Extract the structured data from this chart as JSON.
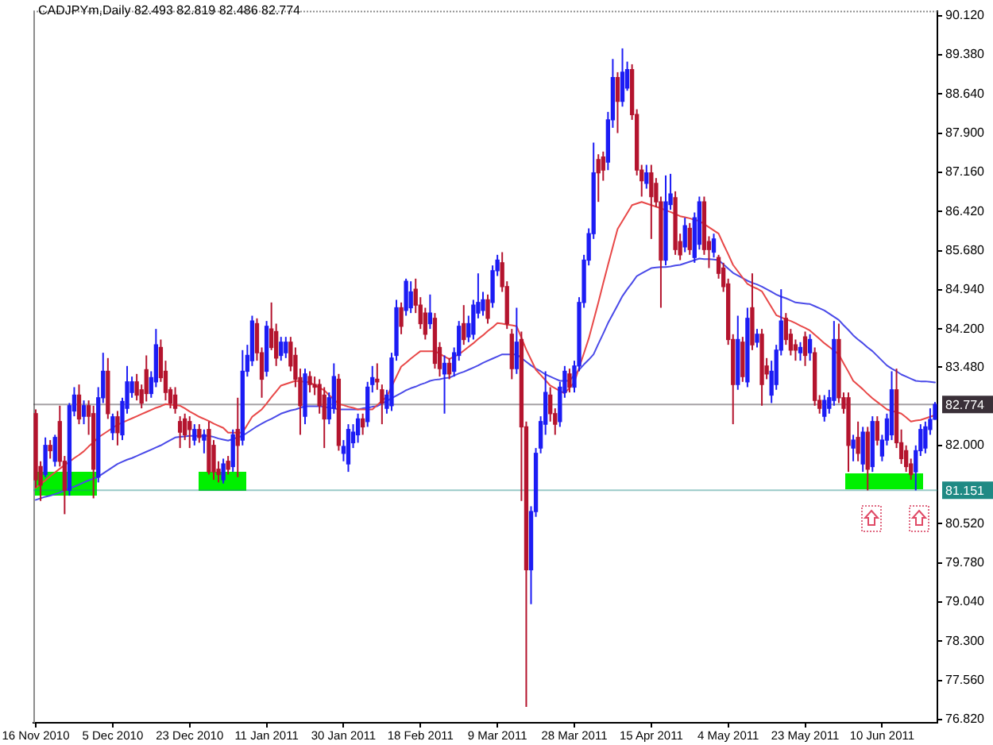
{
  "chart_data": {
    "type": "candlestick",
    "title": "CADJPYm,Daily 82.493 82.819 82.486 82.774",
    "categories": [
      "16 Nov 2010",
      null,
      null,
      null,
      null,
      null,
      null,
      null,
      null,
      null,
      null,
      null,
      null,
      null,
      null,
      null,
      "5 Dec 2010",
      null,
      null,
      null,
      null,
      null,
      null,
      null,
      null,
      null,
      null,
      null,
      null,
      null,
      null,
      null,
      "23 Dec 2010",
      null,
      null,
      null,
      null,
      null,
      null,
      null,
      null,
      null,
      null,
      null,
      null,
      null,
      null,
      null,
      "11 Jan 2011",
      null,
      null,
      null,
      null,
      null,
      null,
      null,
      null,
      null,
      null,
      null,
      null,
      null,
      null,
      null,
      "30 Jan 2011",
      null,
      null,
      null,
      null,
      null,
      null,
      null,
      null,
      null,
      null,
      null,
      null,
      null,
      null,
      null,
      "18 Feb 2011",
      null,
      null,
      null,
      null,
      null,
      null,
      null,
      null,
      null,
      null,
      null,
      null,
      null,
      null,
      null,
      "9 Mar 2011",
      null,
      null,
      null,
      null,
      null,
      null,
      null,
      null,
      null,
      null,
      null,
      null,
      null,
      null,
      null,
      "28 Mar 2011",
      null,
      null,
      null,
      null,
      null,
      null,
      null,
      null,
      null,
      null,
      null,
      null,
      null,
      null,
      null,
      "15 Apr 2011",
      null,
      null,
      null,
      null,
      null,
      null,
      null,
      null,
      null,
      null,
      null,
      null,
      null,
      null,
      null,
      "4 May 2011",
      null,
      null,
      null,
      null,
      null,
      null,
      null,
      null,
      null,
      null,
      null,
      null,
      null,
      null,
      null,
      "23 May 2011",
      null,
      null,
      null,
      null,
      null,
      null,
      null,
      null,
      null,
      null,
      null,
      null,
      null,
      null,
      null,
      "10 Jun 2011",
      null,
      null,
      null,
      null,
      null,
      null,
      null,
      null,
      null,
      null,
      null
    ],
    "ohlc": [
      [
        82.6,
        82.68,
        81.2,
        81.35
      ],
      [
        81.6,
        81.7,
        80.95,
        81.25
      ],
      [
        81.45,
        82.15,
        81.4,
        82.0
      ],
      [
        82.0,
        82.1,
        81.75,
        81.9
      ],
      [
        81.7,
        82.2,
        81.6,
        82.15
      ],
      [
        82.45,
        82.75,
        81.6,
        81.7
      ],
      [
        81.7,
        81.8,
        80.7,
        81.15
      ],
      [
        81.15,
        82.8,
        81.05,
        82.75
      ],
      [
        82.65,
        83.1,
        82.55,
        82.95
      ],
      [
        82.95,
        83.15,
        82.4,
        82.5
      ],
      [
        82.55,
        82.85,
        82.4,
        82.75
      ],
      [
        82.75,
        82.85,
        82.2,
        82.55
      ],
      [
        82.6,
        82.75,
        81.0,
        81.55
      ],
      [
        81.4,
        83.1,
        81.3,
        82.9
      ],
      [
        82.9,
        83.75,
        82.8,
        83.4
      ],
      [
        83.4,
        83.65,
        82.5,
        82.6
      ],
      [
        82.24,
        82.6,
        82.1,
        82.54
      ],
      [
        82.54,
        82.65,
        82.0,
        82.24
      ],
      [
        82.2,
        82.9,
        82.1,
        82.83
      ],
      [
        82.7,
        83.5,
        82.6,
        83.2
      ],
      [
        83.0,
        83.3,
        82.9,
        83.2
      ],
      [
        83.2,
        83.35,
        82.85,
        82.95
      ],
      [
        83.05,
        83.15,
        82.7,
        82.8
      ],
      [
        83.43,
        83.7,
        82.83,
        82.98
      ],
      [
        82.98,
        83.4,
        82.9,
        83.28
      ],
      [
        83.2,
        84.2,
        83.1,
        83.9
      ],
      [
        83.85,
        84.0,
        83.2,
        83.28
      ],
      [
        83.4,
        83.6,
        82.85,
        83.0
      ],
      [
        83.05,
        83.1,
        82.7,
        82.8
      ],
      [
        82.95,
        83.1,
        82.6,
        82.7
      ],
      [
        82.45,
        82.55,
        81.95,
        82.25
      ],
      [
        82.5,
        82.6,
        82.1,
        82.2
      ],
      [
        82.45,
        82.55,
        81.95,
        82.3
      ],
      [
        82.1,
        82.4,
        82.0,
        82.3
      ],
      [
        82.3,
        82.4,
        82.05,
        82.15
      ],
      [
        82.1,
        82.3,
        81.85,
        82.2
      ],
      [
        82.3,
        82.45,
        81.45,
        81.5
      ],
      [
        82.0,
        82.1,
        81.35,
        81.5
      ],
      [
        81.55,
        81.7,
        81.3,
        81.45
      ],
      [
        81.35,
        81.75,
        81.28,
        81.65
      ],
      [
        81.7,
        81.8,
        81.45,
        81.55
      ],
      [
        81.6,
        82.3,
        81.5,
        82.2
      ],
      [
        82.3,
        82.9,
        81.4,
        82.0
      ],
      [
        82.1,
        83.8,
        82.0,
        83.4
      ],
      [
        83.4,
        83.9,
        83.3,
        83.7
      ],
      [
        83.6,
        84.45,
        83.5,
        84.35
      ],
      [
        84.3,
        84.4,
        83.6,
        83.75
      ],
      [
        83.75,
        83.85,
        82.9,
        83.25
      ],
      [
        83.4,
        84.35,
        83.3,
        84.25
      ],
      [
        84.2,
        84.7,
        83.8,
        83.85
      ],
      [
        84.15,
        84.3,
        83.5,
        83.65
      ],
      [
        83.7,
        84.05,
        83.6,
        83.95
      ],
      [
        83.75,
        84.05,
        83.65,
        83.95
      ],
      [
        83.95,
        84.05,
        83.4,
        83.5
      ],
      [
        83.7,
        83.85,
        83.1,
        83.25
      ],
      [
        83.28,
        83.45,
        82.2,
        82.75
      ],
      [
        82.55,
        83.45,
        82.4,
        83.35
      ],
      [
        83.3,
        83.4,
        83.0,
        83.15
      ],
      [
        83.15,
        83.3,
        82.95,
        83.1
      ],
      [
        83.15,
        83.25,
        82.6,
        82.75
      ],
      [
        82.95,
        83.1,
        81.95,
        82.5
      ],
      [
        82.5,
        83.0,
        82.4,
        82.9
      ],
      [
        82.7,
        83.55,
        82.6,
        83.3
      ],
      [
        83.25,
        83.35,
        81.9,
        82.0
      ],
      [
        81.85,
        82.1,
        81.7,
        81.98
      ],
      [
        81.65,
        82.4,
        81.5,
        82.3
      ],
      [
        82.05,
        82.4,
        81.95,
        82.25
      ],
      [
        82.2,
        82.6,
        82.05,
        82.5
      ],
      [
        82.5,
        82.6,
        82.2,
        82.35
      ],
      [
        82.45,
        83.2,
        82.35,
        83.1
      ],
      [
        83.15,
        83.5,
        83.0,
        83.28
      ],
      [
        83.25,
        83.55,
        83.05,
        83.2
      ],
      [
        83.05,
        83.15,
        82.4,
        82.8
      ],
      [
        82.7,
        83.05,
        82.6,
        82.95
      ],
      [
        82.75,
        83.75,
        82.65,
        83.65
      ],
      [
        83.7,
        84.75,
        83.6,
        84.6
      ],
      [
        84.6,
        84.7,
        84.1,
        84.25
      ],
      [
        84.55,
        85.15,
        84.45,
        85.1
      ],
      [
        84.6,
        85.1,
        84.5,
        84.9
      ],
      [
        84.95,
        85.15,
        84.5,
        84.65
      ],
      [
        84.65,
        84.8,
        84.2,
        84.3
      ],
      [
        84.5,
        84.6,
        84.0,
        84.1
      ],
      [
        84.3,
        84.85,
        84.2,
        84.5
      ],
      [
        84.4,
        84.5,
        83.45,
        83.55
      ],
      [
        83.85,
        83.95,
        83.3,
        83.45
      ],
      [
        83.35,
        83.7,
        82.6,
        83.55
      ],
      [
        83.55,
        83.65,
        83.25,
        83.35
      ],
      [
        83.4,
        83.85,
        83.3,
        83.75
      ],
      [
        83.7,
        84.35,
        83.6,
        84.25
      ],
      [
        84.3,
        84.65,
        83.9,
        84.0
      ],
      [
        84.05,
        84.45,
        83.95,
        84.3
      ],
      [
        84.1,
        84.75,
        84.0,
        84.65
      ],
      [
        84.5,
        85.25,
        84.4,
        84.7
      ],
      [
        84.55,
        84.9,
        84.45,
        84.75
      ],
      [
        84.75,
        84.85,
        84.3,
        84.4
      ],
      [
        84.7,
        85.4,
        84.6,
        85.3
      ],
      [
        85.3,
        85.6,
        85.2,
        85.5
      ],
      [
        85.45,
        85.65,
        84.9,
        85.0
      ],
      [
        85.0,
        85.1,
        84.2,
        84.3
      ],
      [
        84.1,
        84.2,
        83.25,
        83.45
      ],
      [
        83.45,
        84.6,
        83.35,
        83.95
      ],
      [
        84.0,
        84.15,
        80.95,
        82.35
      ],
      [
        82.35,
        82.45,
        77.06,
        79.65
      ],
      [
        79.65,
        80.85,
        79.0,
        80.75
      ],
      [
        80.75,
        81.95,
        80.65,
        81.85
      ],
      [
        81.95,
        82.55,
        81.85,
        82.45
      ],
      [
        82.4,
        83.4,
        82.2,
        83.0
      ],
      [
        82.95,
        83.1,
        82.45,
        82.6
      ],
      [
        82.6,
        82.7,
        82.2,
        82.4
      ],
      [
        82.45,
        83.2,
        82.35,
        83.1
      ],
      [
        83.0,
        83.5,
        82.9,
        83.4
      ],
      [
        83.35,
        83.45,
        83.0,
        83.1
      ],
      [
        83.1,
        83.6,
        83.0,
        83.5
      ],
      [
        83.5,
        84.8,
        83.4,
        84.7
      ],
      [
        84.7,
        85.6,
        84.6,
        85.5
      ],
      [
        85.5,
        86.1,
        85.4,
        86.0
      ],
      [
        86.0,
        87.72,
        85.9,
        87.15
      ],
      [
        87.4,
        87.5,
        86.6,
        87.15
      ],
      [
        87.45,
        87.55,
        87.0,
        87.2
      ],
      [
        87.35,
        88.3,
        87.2,
        88.15
      ],
      [
        88.15,
        89.3,
        88.0,
        88.95
      ],
      [
        88.95,
        89.05,
        87.9,
        88.5
      ],
      [
        88.5,
        89.5,
        88.4,
        89.05
      ],
      [
        88.75,
        89.25,
        88.7,
        89.1
      ],
      [
        89.1,
        89.2,
        88.15,
        88.25
      ],
      [
        88.25,
        88.35,
        87.1,
        87.2
      ],
      [
        87.2,
        87.3,
        86.7,
        87.0
      ],
      [
        86.95,
        87.3,
        86.85,
        87.15
      ],
      [
        87.15,
        87.3,
        85.9,
        86.7
      ],
      [
        86.95,
        87.05,
        86.5,
        86.6
      ],
      [
        86.6,
        86.7,
        84.6,
        85.5
      ],
      [
        85.5,
        87.1,
        85.4,
        86.6
      ],
      [
        86.55,
        87.13,
        86.45,
        86.75
      ],
      [
        86.68,
        86.8,
        85.6,
        85.7
      ],
      [
        85.85,
        86.0,
        85.5,
        85.6
      ],
      [
        85.75,
        86.3,
        85.65,
        86.15
      ],
      [
        86.1,
        86.2,
        85.6,
        85.7
      ],
      [
        85.55,
        86.4,
        85.45,
        86.3
      ],
      [
        85.8,
        86.7,
        85.7,
        86.6
      ],
      [
        86.6,
        86.7,
        85.6,
        85.7
      ],
      [
        85.85,
        85.95,
        85.35,
        85.7
      ],
      [
        85.65,
        86.0,
        85.55,
        85.9
      ],
      [
        85.55,
        85.6,
        85.15,
        85.25
      ],
      [
        85.35,
        85.45,
        84.9,
        85.0
      ],
      [
        85.05,
        85.15,
        83.9,
        84.0
      ],
      [
        84.0,
        84.1,
        82.4,
        83.15
      ],
      [
        83.15,
        84.45,
        83.05,
        84.0
      ],
      [
        83.95,
        84.05,
        83.2,
        83.3
      ],
      [
        83.2,
        84.6,
        83.1,
        84.4
      ],
      [
        84.6,
        85.25,
        83.8,
        83.9
      ],
      [
        83.95,
        84.2,
        83.85,
        84.1
      ],
      [
        84.1,
        84.2,
        82.75,
        83.15
      ],
      [
        83.5,
        83.65,
        83.25,
        83.35
      ],
      [
        82.95,
        83.6,
        82.8,
        83.4
      ],
      [
        83.15,
        83.9,
        83.05,
        83.8
      ],
      [
        83.8,
        84.95,
        83.7,
        84.35
      ],
      [
        84.4,
        84.5,
        83.9,
        84.0
      ],
      [
        84.1,
        84.2,
        83.7,
        83.8
      ],
      [
        83.9,
        84.0,
        83.6,
        83.8
      ],
      [
        83.75,
        83.95,
        83.6,
        83.85
      ],
      [
        84.05,
        84.15,
        83.5,
        83.7
      ],
      [
        83.75,
        84.1,
        83.6,
        84.0
      ],
      [
        83.75,
        83.85,
        82.75,
        82.85
      ],
      [
        82.85,
        82.95,
        82.6,
        82.7
      ],
      [
        82.55,
        82.95,
        82.45,
        82.85
      ],
      [
        82.7,
        83.05,
        82.6,
        82.9
      ],
      [
        82.85,
        84.35,
        82.75,
        84.0
      ],
      [
        84.0,
        84.3,
        82.8,
        82.9
      ],
      [
        82.9,
        83.0,
        82.6,
        82.7
      ],
      [
        82.9,
        83.0,
        81.5,
        82.0
      ],
      [
        81.95,
        82.2,
        81.7,
        82.1
      ],
      [
        82.15,
        82.45,
        81.7,
        81.85
      ],
      [
        81.65,
        82.35,
        81.5,
        82.25
      ],
      [
        82.25,
        82.35,
        81.15,
        81.55
      ],
      [
        81.6,
        82.55,
        81.5,
        82.45
      ],
      [
        82.45,
        82.55,
        82.0,
        82.1
      ],
      [
        81.8,
        82.2,
        81.7,
        82.1
      ],
      [
        82.1,
        82.6,
        82.0,
        82.5
      ],
      [
        82.2,
        83.4,
        82.1,
        83.05
      ],
      [
        83.05,
        83.45,
        81.95,
        82.05
      ],
      [
        82.05,
        82.3,
        81.65,
        81.75
      ],
      [
        81.9,
        82.0,
        81.5,
        81.6
      ],
      [
        81.65,
        81.75,
        81.35,
        81.45
      ],
      [
        81.5,
        82.0,
        81.15,
        81.9
      ],
      [
        81.9,
        82.4,
        81.8,
        82.3
      ],
      [
        81.95,
        82.45,
        81.85,
        82.35
      ],
      [
        82.3,
        82.7,
        82.2,
        82.49
      ],
      [
        82.493,
        82.819,
        82.486,
        82.774
      ]
    ],
    "colors": [
      "#b4142e",
      "#b4142e",
      "#1c1cf4",
      "#b4142e",
      "#1c1cf4",
      "#b4142e",
      "#b4142e",
      "#1c1cf4",
      "#1c1cf4",
      "#b4142e",
      "#1c1cf4",
      "#b4142e",
      "#b4142e",
      "#1c1cf4",
      "#1c1cf4",
      "#b4142e",
      "#1c1cf4",
      "#b4142e",
      "#1c1cf4",
      "#1c1cf4",
      "#1c1cf4",
      "#b4142e",
      "#b4142e",
      "#b4142e",
      "#1c1cf4",
      "#1c1cf4",
      "#b4142e",
      "#b4142e",
      "#b4142e",
      "#b4142e",
      "#b4142e",
      "#b4142e",
      "#b4142e",
      "#1c1cf4",
      "#b4142e",
      "#1c1cf4",
      "#b4142e",
      "#b4142e",
      "#b4142e",
      "#1c1cf4",
      "#b4142e",
      "#1c1cf4",
      "#b4142e",
      "#1c1cf4",
      "#1c1cf4",
      "#1c1cf4",
      "#b4142e",
      "#b4142e",
      "#1c1cf4",
      "#b4142e",
      "#b4142e",
      "#1c1cf4",
      "#1c1cf4",
      "#b4142e",
      "#b4142e",
      "#b4142e",
      "#1c1cf4",
      "#b4142e",
      "#b4142e",
      "#b4142e",
      "#b4142e",
      "#1c1cf4",
      "#1c1cf4",
      "#b4142e",
      "#1c1cf4",
      "#1c1cf4",
      "#1c1cf4",
      "#1c1cf4",
      "#b4142e",
      "#1c1cf4",
      "#1c1cf4",
      "#b4142e",
      "#b4142e",
      "#1c1cf4",
      "#1c1cf4",
      "#1c1cf4",
      "#b4142e",
      "#1c1cf4",
      "#1c1cf4",
      "#b4142e",
      "#b4142e",
      "#b4142e",
      "#1c1cf4",
      "#b4142e",
      "#b4142e",
      "#1c1cf4",
      "#b4142e",
      "#1c1cf4",
      "#1c1cf4",
      "#b4142e",
      "#1c1cf4",
      "#1c1cf4",
      "#1c1cf4",
      "#1c1cf4",
      "#b4142e",
      "#1c1cf4",
      "#1c1cf4",
      "#b4142e",
      "#b4142e",
      "#b4142e",
      "#1c1cf4",
      "#b4142e",
      "#b4142e",
      "#1c1cf4",
      "#1c1cf4",
      "#1c1cf4",
      "#1c1cf4",
      "#b4142e",
      "#b4142e",
      "#1c1cf4",
      "#1c1cf4",
      "#b4142e",
      "#1c1cf4",
      "#1c1cf4",
      "#1c1cf4",
      "#1c1cf4",
      "#1c1cf4",
      "#b4142e",
      "#b4142e",
      "#1c1cf4",
      "#1c1cf4",
      "#b4142e",
      "#1c1cf4",
      "#1c1cf4",
      "#b4142e",
      "#b4142e",
      "#b4142e",
      "#1c1cf4",
      "#b4142e",
      "#b4142e",
      "#b4142e",
      "#1c1cf4",
      "#1c1cf4",
      "#b4142e",
      "#b4142e",
      "#1c1cf4",
      "#b4142e",
      "#1c1cf4",
      "#1c1cf4",
      "#b4142e",
      "#b4142e",
      "#1c1cf4",
      "#b4142e",
      "#b4142e",
      "#b4142e",
      "#b4142e",
      "#1c1cf4",
      "#b4142e",
      "#1c1cf4",
      "#b4142e",
      "#1c1cf4",
      "#b4142e",
      "#b4142e",
      "#1c1cf4",
      "#1c1cf4",
      "#1c1cf4",
      "#b4142e",
      "#b4142e",
      "#b4142e",
      "#1c1cf4",
      "#b4142e",
      "#1c1cf4",
      "#b4142e",
      "#b4142e",
      "#1c1cf4",
      "#1c1cf4",
      "#1c1cf4",
      "#b4142e",
      "#b4142e",
      "#b4142e",
      "#1c1cf4",
      "#b4142e",
      "#1c1cf4",
      "#b4142e",
      "#1c1cf4",
      "#b4142e",
      "#1c1cf4",
      "#1c1cf4",
      "#1c1cf4",
      "#b4142e",
      "#b4142e",
      "#b4142e",
      "#b4142e",
      "#1c1cf4",
      "#1c1cf4",
      "#1c1cf4",
      "#1c1cf4",
      "#1c1cf4"
    ],
    "series": [
      {
        "type": "line",
        "color": "#e84848",
        "values": [
          81.2,
          81.27,
          81.34,
          81.42,
          81.49,
          81.56,
          81.63,
          81.69,
          81.76,
          81.82,
          81.89,
          81.98,
          82.06,
          82.15,
          82.21,
          82.27,
          82.33,
          82.39,
          82.43,
          82.47,
          82.51,
          82.55,
          82.59,
          82.63,
          82.67,
          82.71,
          82.74,
          82.78,
          82.77,
          82.76,
          82.75,
          82.7,
          82.64,
          82.59,
          82.54,
          82.5,
          82.46,
          82.41,
          82.37,
          82.33,
          82.24,
          82.24,
          82.24,
          82.24,
          82.39,
          82.54,
          82.61,
          82.68,
          82.79,
          82.91,
          83.02,
          83.13,
          83.16,
          83.19,
          83.22,
          83.21,
          83.2,
          83.19,
          83.14,
          83.09,
          83.04,
          82.95,
          82.87,
          82.78,
          82.76,
          82.73,
          82.71,
          82.68,
          82.68,
          82.68,
          82.68,
          82.76,
          82.84,
          82.92,
          83.11,
          83.3,
          83.49,
          83.56,
          83.64,
          83.71,
          83.78,
          83.78,
          83.78,
          83.78,
          83.73,
          83.68,
          83.63,
          83.68,
          83.72,
          83.79,
          83.86,
          83.93,
          84.01,
          84.08,
          84.16,
          84.23,
          84.31,
          84.3,
          84.28,
          84.27,
          84.25,
          84.03,
          83.81,
          83.62,
          83.43,
          83.33,
          83.23,
          83.13,
          83.08,
          83.03,
          82.98,
          83.09,
          83.19,
          83.47,
          83.74,
          84.02,
          84.36,
          84.7,
          85.06,
          85.41,
          85.75,
          86.09,
          86.24,
          86.39,
          86.54,
          86.57,
          86.6,
          86.57,
          86.54,
          86.51,
          86.48,
          86.44,
          86.41,
          86.37,
          86.33,
          86.31,
          86.29,
          86.26,
          86.24,
          86.18,
          86.12,
          86.06,
          86.0,
          85.8,
          85.61,
          85.41,
          85.29,
          85.17,
          85.05,
          85.0,
          84.96,
          84.91,
          84.76,
          84.61,
          84.46,
          84.42,
          84.38,
          84.35,
          84.31,
          84.26,
          84.22,
          84.17,
          84.09,
          84.01,
          83.93,
          83.86,
          83.79,
          83.72,
          83.55,
          83.39,
          83.22,
          83.14,
          83.06,
          82.97,
          82.89,
          82.82,
          82.75,
          82.68,
          82.65,
          82.63,
          82.6,
          82.53,
          82.45,
          82.47,
          82.48,
          82.51,
          82.54,
          82.57
        ]
      },
      {
        "type": "line",
        "color": "#4a4ae8",
        "values": [
          80.97,
          81.0,
          81.03,
          81.05,
          81.08,
          81.11,
          81.15,
          81.19,
          81.22,
          81.26,
          81.3,
          81.34,
          81.37,
          81.41,
          81.47,
          81.53,
          81.59,
          81.65,
          81.69,
          81.73,
          81.76,
          81.8,
          81.84,
          81.88,
          81.92,
          81.96,
          82.0,
          82.05,
          82.1,
          82.15,
          82.16,
          82.17,
          82.18,
          82.18,
          82.18,
          82.18,
          82.18,
          82.16,
          82.13,
          82.11,
          82.09,
          82.12,
          82.15,
          82.18,
          82.24,
          82.3,
          82.36,
          82.41,
          82.46,
          82.5,
          82.55,
          82.6,
          82.63,
          82.66,
          82.68,
          82.71,
          82.74,
          82.74,
          82.74,
          82.74,
          82.73,
          82.71,
          82.7,
          82.68,
          82.68,
          82.68,
          82.68,
          82.68,
          82.7,
          82.71,
          82.73,
          82.74,
          82.79,
          82.84,
          82.89,
          82.94,
          82.99,
          83.04,
          83.08,
          83.11,
          83.15,
          83.18,
          83.22,
          83.24,
          83.25,
          83.27,
          83.28,
          83.32,
          83.36,
          83.39,
          83.43,
          83.47,
          83.51,
          83.56,
          83.6,
          83.64,
          83.68,
          83.72,
          83.72,
          83.72,
          83.72,
          83.65,
          83.58,
          83.51,
          83.45,
          83.4,
          83.34,
          83.3,
          83.26,
          83.22,
          83.22,
          83.22,
          83.33,
          83.43,
          83.53,
          83.62,
          83.72,
          83.92,
          84.11,
          84.31,
          84.48,
          84.65,
          84.82,
          84.95,
          85.07,
          85.2,
          85.25,
          85.3,
          85.35,
          85.36,
          85.37,
          85.37,
          85.38,
          85.4,
          85.41,
          85.44,
          85.47,
          85.5,
          85.53,
          85.52,
          85.52,
          85.51,
          85.5,
          85.42,
          85.34,
          85.26,
          85.21,
          85.16,
          85.11,
          85.07,
          85.04,
          85.0,
          84.95,
          84.9,
          84.85,
          84.81,
          84.78,
          84.74,
          84.7,
          84.69,
          84.68,
          84.67,
          84.63,
          84.59,
          84.55,
          84.49,
          84.43,
          84.37,
          84.27,
          84.18,
          84.08,
          84.0,
          83.93,
          83.85,
          83.78,
          83.69,
          83.6,
          83.51,
          83.45,
          83.4,
          83.34,
          83.3,
          83.26,
          83.22,
          83.21,
          83.21,
          83.2,
          83.19
        ]
      }
    ],
    "ylim": [
      76.76,
      90.21
    ],
    "yticks": [
      {
        "value": 90.12,
        "label": "90.120"
      },
      {
        "value": 89.38,
        "label": "89.380"
      },
      {
        "value": 88.64,
        "label": "88.640"
      },
      {
        "value": 87.9,
        "label": "87.900"
      },
      {
        "value": 87.16,
        "label": "87.160"
      },
      {
        "value": 86.42,
        "label": "86.420"
      },
      {
        "value": 85.68,
        "label": "85.680"
      },
      {
        "value": 84.94,
        "label": "84.940"
      },
      {
        "value": 84.2,
        "label": "84.200"
      },
      {
        "value": 83.48,
        "label": "83.480"
      },
      {
        "value": 82,
        "label": "82.000"
      },
      {
        "value": 80.52,
        "label": "80.520"
      },
      {
        "value": 79.78,
        "label": "79.780"
      },
      {
        "value": 79.04,
        "label": "79.040"
      },
      {
        "value": 78.3,
        "label": "78.300"
      },
      {
        "value": 77.56,
        "label": "77.560"
      },
      {
        "value": 76.82,
        "label": "76.820"
      }
    ],
    "ref_lines": [
      {
        "axis": "y",
        "value": 82.774,
        "label": "82.774",
        "color": "#3a3038"
      },
      {
        "axis": "y",
        "value": 81.151,
        "label": "81.151",
        "color": "#1f8a84"
      }
    ]
  }
}
